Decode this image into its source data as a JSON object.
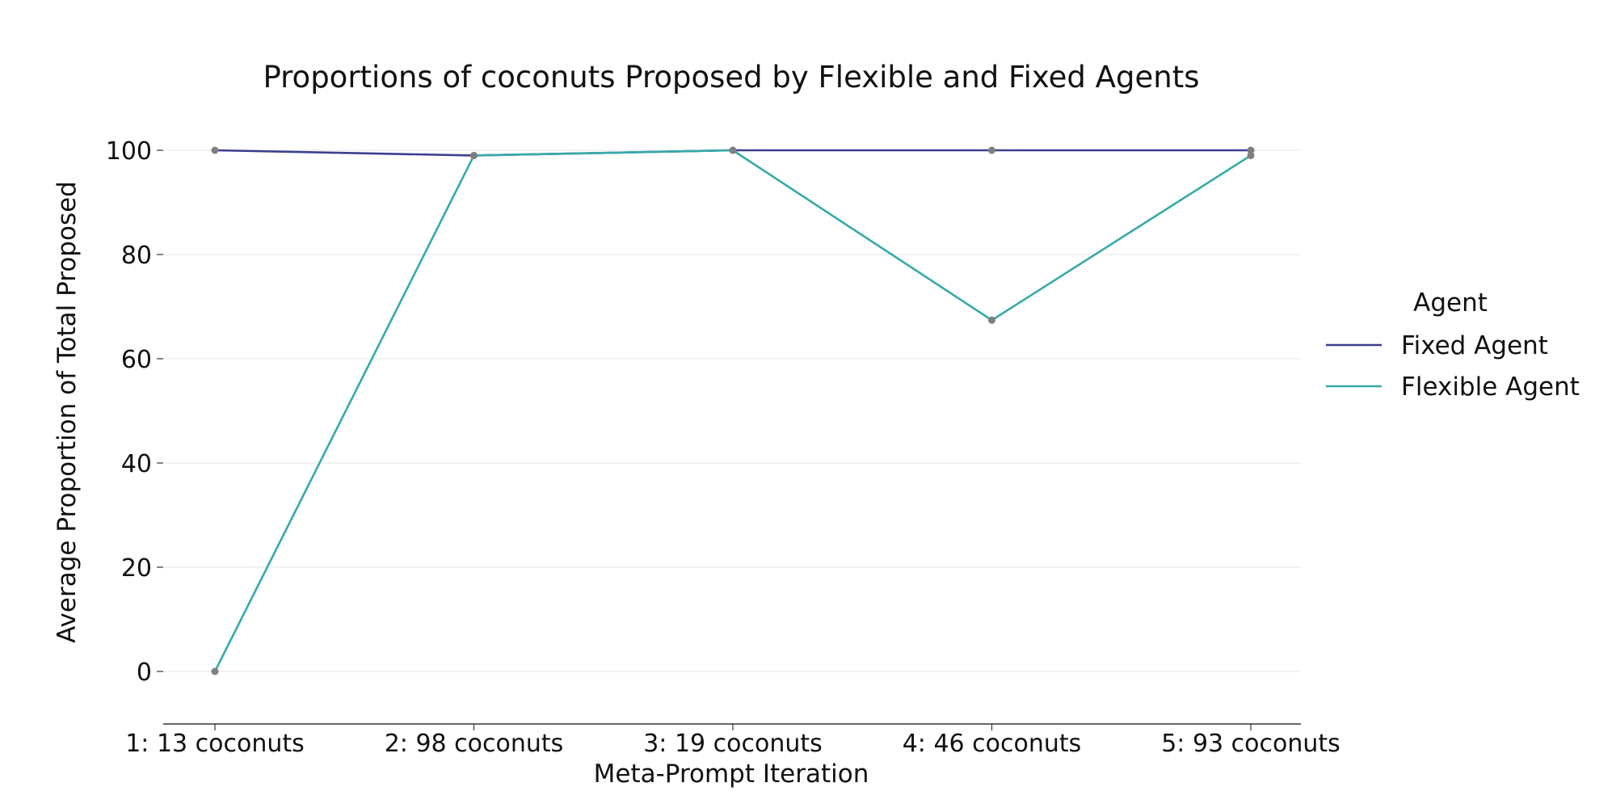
{
  "chart_data": {
    "type": "line",
    "title": "Proportions of coconuts Proposed by Flexible and Fixed Agents",
    "xlabel": "Meta-Prompt Iteration",
    "ylabel": "Average Proportion of Total Proposed",
    "categories": [
      "1: 13 coconuts",
      "2: 98 coconuts",
      "3: 19 coconuts",
      "4: 46 coconuts",
      "5: 93 coconuts"
    ],
    "ylim": [
      -10,
      110
    ],
    "yticks": [
      "0",
      "20",
      "40",
      "60",
      "80",
      "100"
    ],
    "grid": "horizontal",
    "legend": {
      "title": "Agent",
      "placement": "right"
    },
    "series": [
      {
        "name": "Fixed Agent",
        "color": "#3b3f8f",
        "values": [
          100,
          99,
          100,
          100,
          100
        ]
      },
      {
        "name": "Flexible Agent",
        "color": "#36aaa9",
        "values": [
          0,
          99,
          100,
          67.4,
          99
        ]
      }
    ],
    "marker_color": "#7f7f7f"
  }
}
